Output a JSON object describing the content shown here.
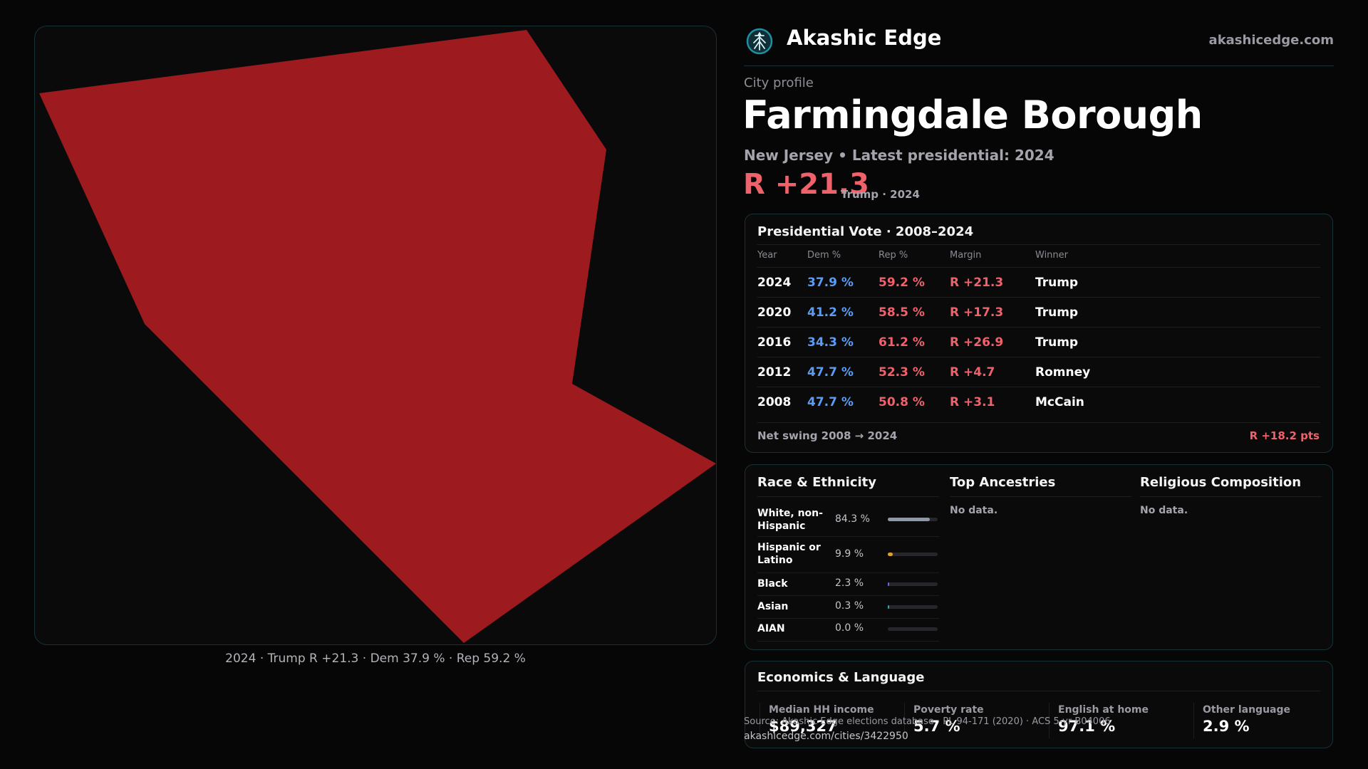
{
  "brand": {
    "name": "Akashic Edge",
    "url": "akashicedge.com",
    "logo_icon": "tree-of-life-icon",
    "accent": "#1f8fa3"
  },
  "profile": {
    "eyebrow": "City profile",
    "title": "Farmingdale Borough",
    "subtitle": "New Jersey • Latest presidential: 2024",
    "margin": "R +21.3",
    "margin_note": "Trump · 2024"
  },
  "map": {
    "fill_color": "#9d1b1f",
    "caption": "2024 · Trump R +21.3 · Dem 37.9 % · Rep 59.2 %"
  },
  "presidential": {
    "title": "Presidential Vote · 2008–2024",
    "headers": [
      "Year",
      "Dem %",
      "Rep %",
      "Margin",
      "Winner"
    ],
    "rows": [
      {
        "year": "2024",
        "dem": "37.9 %",
        "rep": "59.2 %",
        "margin": "R +21.3",
        "winner": "Trump"
      },
      {
        "year": "2020",
        "dem": "41.2 %",
        "rep": "58.5 %",
        "margin": "R +17.3",
        "winner": "Trump"
      },
      {
        "year": "2016",
        "dem": "34.3 %",
        "rep": "61.2 %",
        "margin": "R +26.9",
        "winner": "Trump"
      },
      {
        "year": "2012",
        "dem": "47.7 %",
        "rep": "52.3 %",
        "margin": "R +4.7",
        "winner": "Romney"
      },
      {
        "year": "2008",
        "dem": "47.7 %",
        "rep": "50.8 %",
        "margin": "R +3.1",
        "winner": "McCain"
      }
    ],
    "swing_label": "Net swing 2008 → 2024",
    "swing_value": "R +18.2 pts"
  },
  "race": {
    "title": "Race & Ethnicity",
    "rows": [
      {
        "label": "White, non-Hispanic",
        "pct": "84.3 %",
        "value": 84.3,
        "color": "#8f98a8"
      },
      {
        "label": "Hispanic or Latino",
        "pct": "9.9 %",
        "value": 9.9,
        "color": "#e0a030"
      },
      {
        "label": "Black",
        "pct": "2.3 %",
        "value": 2.3,
        "color": "#6a6ae0"
      },
      {
        "label": "Asian",
        "pct": "0.3 %",
        "value": 0.3,
        "color": "#3aa0a0"
      },
      {
        "label": "AIAN",
        "pct": "0.0 %",
        "value": 0.0,
        "color": "#a06a3a"
      }
    ]
  },
  "ancestries": {
    "title": "Top Ancestries",
    "empty": "No data."
  },
  "religion": {
    "title": "Religious Composition",
    "empty": "No data."
  },
  "economics": {
    "title": "Economics & Language",
    "items": [
      {
        "label": "Median HH income",
        "value": "$89,327"
      },
      {
        "label": "Poverty rate",
        "value": "5.7 %"
      },
      {
        "label": "English at home",
        "value": "97.1 %"
      },
      {
        "label": "Other language",
        "value": "2.9 %"
      }
    ]
  },
  "footer": {
    "source": "Source: Akashic Edge elections database · PL 94-171 (2020) · ACS 5-yr B04006",
    "url": "akashicedge.com/cities/3422950"
  }
}
